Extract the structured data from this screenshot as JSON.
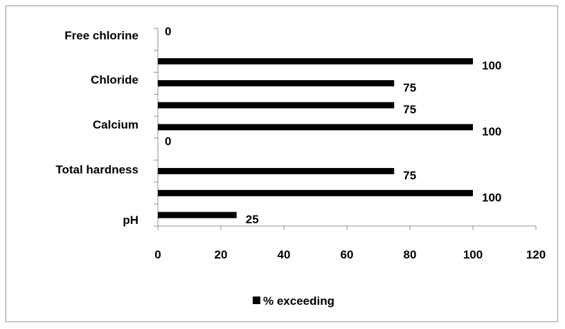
{
  "chart_data": {
    "type": "bar",
    "orientation": "horizontal",
    "category_labels_shown": [
      "Free chlorine",
      "Chloride",
      "Calcium",
      "Total hardness",
      "pH"
    ],
    "series": [
      {
        "name": "% exceeding",
        "values_top_to_bottom": [
          0,
          100,
          75,
          75,
          100,
          0,
          75,
          100,
          25
        ]
      }
    ],
    "x_ticks": [
      0,
      20,
      40,
      60,
      80,
      100,
      120
    ],
    "xlim": [
      0,
      120
    ],
    "grid": false,
    "legend_position": "bottom",
    "colors": {
      "bar": "#000000",
      "axis": "#8c8c8c",
      "frame": "#9a9a9a"
    }
  }
}
